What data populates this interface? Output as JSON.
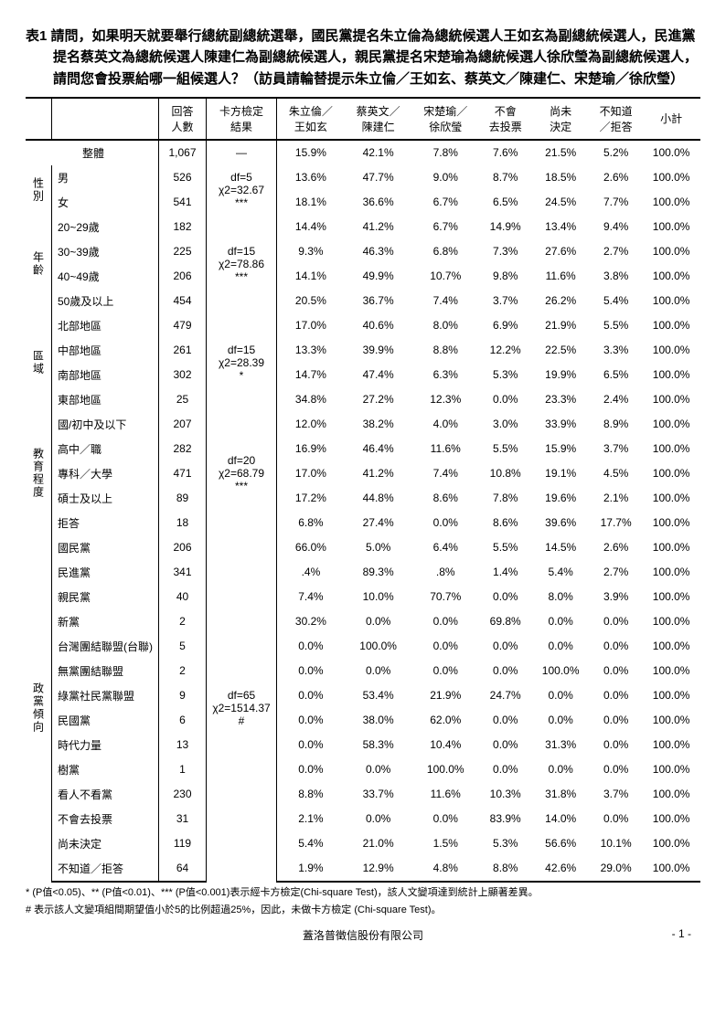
{
  "title": "表1 請問，如果明天就要舉行總統副總統選舉，國民黨提名朱立倫為總統候選人王如玄為副總統候選人，民進黨提名蔡英文為總統候選人陳建仁為副總統候選人，親民黨提名宋楚瑜為總統候選人徐欣瑩為副總統候選人，請問您會投票給哪一組候選人？（訪員請輪替提示朱立倫／王如玄、蔡英文／陳建仁、宋楚瑜／徐欣瑩）",
  "headers": {
    "n": "回答\n人數",
    "chi": "卡方檢定\n結果",
    "c1": "朱立倫／\n王如玄",
    "c2": "蔡英文／\n陳建仁",
    "c3": "宋楚瑜／\n徐欣瑩",
    "c4": "不會\n去投票",
    "c5": "尚未\n決定",
    "c6": "不知道\n／拒答",
    "c7": "小計"
  },
  "sections": [
    {
      "label": "整體",
      "full": true,
      "chi": "—",
      "rows": [
        {
          "label": "整體",
          "n": "1,067",
          "c": [
            "15.9%",
            "42.1%",
            "7.8%",
            "7.6%",
            "21.5%",
            "5.2%",
            "100.0%"
          ]
        }
      ]
    },
    {
      "label": "性別",
      "chi": "df=5\nχ2=32.67\n***",
      "rows": [
        {
          "label": "男",
          "n": "526",
          "c": [
            "13.6%",
            "47.7%",
            "9.0%",
            "8.7%",
            "18.5%",
            "2.6%",
            "100.0%"
          ]
        },
        {
          "label": "女",
          "n": "541",
          "c": [
            "18.1%",
            "36.6%",
            "6.7%",
            "6.5%",
            "24.5%",
            "7.7%",
            "100.0%"
          ]
        }
      ]
    },
    {
      "label": "年齡",
      "chi": "df=15\nχ2=78.86\n***",
      "rows": [
        {
          "label": "20~29歲",
          "n": "182",
          "c": [
            "14.4%",
            "41.2%",
            "6.7%",
            "14.9%",
            "13.4%",
            "9.4%",
            "100.0%"
          ]
        },
        {
          "label": "30~39歲",
          "n": "225",
          "c": [
            "9.3%",
            "46.3%",
            "6.8%",
            "7.3%",
            "27.6%",
            "2.7%",
            "100.0%"
          ]
        },
        {
          "label": "40~49歲",
          "n": "206",
          "c": [
            "14.1%",
            "49.9%",
            "10.7%",
            "9.8%",
            "11.6%",
            "3.8%",
            "100.0%"
          ]
        },
        {
          "label": "50歲及以上",
          "n": "454",
          "c": [
            "20.5%",
            "36.7%",
            "7.4%",
            "3.7%",
            "26.2%",
            "5.4%",
            "100.0%"
          ]
        }
      ]
    },
    {
      "label": "區域",
      "chi": "df=15\nχ2=28.39\n*",
      "rows": [
        {
          "label": "北部地區",
          "n": "479",
          "c": [
            "17.0%",
            "40.6%",
            "8.0%",
            "6.9%",
            "21.9%",
            "5.5%",
            "100.0%"
          ]
        },
        {
          "label": "中部地區",
          "n": "261",
          "c": [
            "13.3%",
            "39.9%",
            "8.8%",
            "12.2%",
            "22.5%",
            "3.3%",
            "100.0%"
          ]
        },
        {
          "label": "南部地區",
          "n": "302",
          "c": [
            "14.7%",
            "47.4%",
            "6.3%",
            "5.3%",
            "19.9%",
            "6.5%",
            "100.0%"
          ]
        },
        {
          "label": "東部地區",
          "n": "25",
          "c": [
            "34.8%",
            "27.2%",
            "12.3%",
            "0.0%",
            "23.3%",
            "2.4%",
            "100.0%"
          ]
        }
      ]
    },
    {
      "label": "教育程度",
      "chi": "df=20\nχ2=68.79\n***",
      "rows": [
        {
          "label": "國/初中及以下",
          "n": "207",
          "c": [
            "12.0%",
            "38.2%",
            "4.0%",
            "3.0%",
            "33.9%",
            "8.9%",
            "100.0%"
          ]
        },
        {
          "label": "高中／職",
          "n": "282",
          "c": [
            "16.9%",
            "46.4%",
            "11.6%",
            "5.5%",
            "15.9%",
            "3.7%",
            "100.0%"
          ]
        },
        {
          "label": "專科／大學",
          "n": "471",
          "c": [
            "17.0%",
            "41.2%",
            "7.4%",
            "10.8%",
            "19.1%",
            "4.5%",
            "100.0%"
          ]
        },
        {
          "label": "碩士及以上",
          "n": "89",
          "c": [
            "17.2%",
            "44.8%",
            "8.6%",
            "7.8%",
            "19.6%",
            "2.1%",
            "100.0%"
          ]
        },
        {
          "label": "拒答",
          "n": "18",
          "c": [
            "6.8%",
            "27.4%",
            "0.0%",
            "8.6%",
            "39.6%",
            "17.7%",
            "100.0%"
          ]
        }
      ]
    },
    {
      "label": "政黨傾向",
      "chi": "df=65\nχ2=1514.37\n#",
      "rows": [
        {
          "label": "國民黨",
          "n": "206",
          "c": [
            "66.0%",
            "5.0%",
            "6.4%",
            "5.5%",
            "14.5%",
            "2.6%",
            "100.0%"
          ]
        },
        {
          "label": "民進黨",
          "n": "341",
          "c": [
            ".4%",
            "89.3%",
            ".8%",
            "1.4%",
            "5.4%",
            "2.7%",
            "100.0%"
          ]
        },
        {
          "label": "親民黨",
          "n": "40",
          "c": [
            "7.4%",
            "10.0%",
            "70.7%",
            "0.0%",
            "8.0%",
            "3.9%",
            "100.0%"
          ]
        },
        {
          "label": "新黨",
          "n": "2",
          "c": [
            "30.2%",
            "0.0%",
            "0.0%",
            "69.8%",
            "0.0%",
            "0.0%",
            "100.0%"
          ]
        },
        {
          "label": "台灣團結聯盟(台聯)",
          "n": "5",
          "c": [
            "0.0%",
            "100.0%",
            "0.0%",
            "0.0%",
            "0.0%",
            "0.0%",
            "100.0%"
          ]
        },
        {
          "label": "無黨團結聯盟",
          "n": "2",
          "c": [
            "0.0%",
            "0.0%",
            "0.0%",
            "0.0%",
            "100.0%",
            "0.0%",
            "100.0%"
          ]
        },
        {
          "label": "綠黨社民黨聯盟",
          "n": "9",
          "c": [
            "0.0%",
            "53.4%",
            "21.9%",
            "24.7%",
            "0.0%",
            "0.0%",
            "100.0%"
          ]
        },
        {
          "label": "民國黨",
          "n": "6",
          "c": [
            "0.0%",
            "38.0%",
            "62.0%",
            "0.0%",
            "0.0%",
            "0.0%",
            "100.0%"
          ]
        },
        {
          "label": "時代力量",
          "n": "13",
          "c": [
            "0.0%",
            "58.3%",
            "10.4%",
            "0.0%",
            "31.3%",
            "0.0%",
            "100.0%"
          ]
        },
        {
          "label": "樹黨",
          "n": "1",
          "c": [
            "0.0%",
            "0.0%",
            "100.0%",
            "0.0%",
            "0.0%",
            "0.0%",
            "100.0%"
          ]
        },
        {
          "label": "看人不看黨",
          "n": "230",
          "c": [
            "8.8%",
            "33.7%",
            "11.6%",
            "10.3%",
            "31.8%",
            "3.7%",
            "100.0%"
          ]
        },
        {
          "label": "不會去投票",
          "n": "31",
          "c": [
            "2.1%",
            "0.0%",
            "0.0%",
            "83.9%",
            "14.0%",
            "0.0%",
            "100.0%"
          ]
        },
        {
          "label": "尚未決定",
          "n": "119",
          "c": [
            "5.4%",
            "21.0%",
            "1.5%",
            "5.3%",
            "56.6%",
            "10.1%",
            "100.0%"
          ]
        },
        {
          "label": "不知道／拒答",
          "n": "64",
          "c": [
            "1.9%",
            "12.9%",
            "4.8%",
            "8.8%",
            "42.6%",
            "29.0%",
            "100.0%"
          ]
        }
      ]
    }
  ],
  "footnotes": [
    "* (P值<0.05)、** (P值<0.01)、*** (P值<0.001)表示經卡方檢定(Chi-square Test)，該人文變項達到統計上顯著差異。",
    "# 表示該人文變項組間期望值小於5的比例超過25%，因此，未做卡方檢定 (Chi-square Test)。"
  ],
  "footer": {
    "company": "蓋洛普徵信股份有限公司",
    "page": "- 1 -"
  }
}
